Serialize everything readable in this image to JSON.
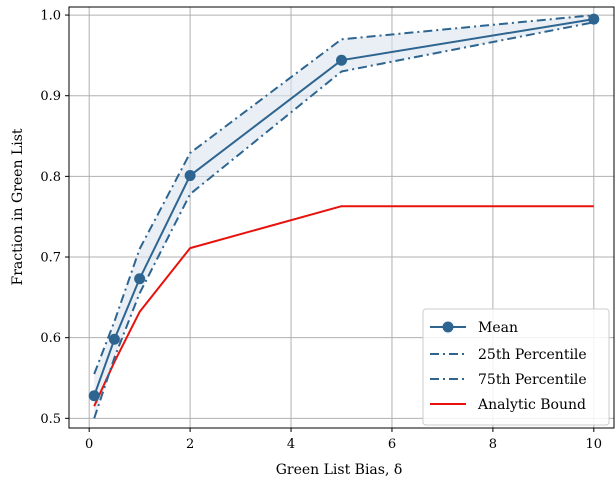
{
  "chart_data": {
    "type": "line",
    "title": "",
    "xlabel": "Green List Bias, δ",
    "ylabel": "Fraction in Green List",
    "xlim": [
      -0.4,
      10.4
    ],
    "ylim": [
      0.488,
      1.01
    ],
    "xticks": [
      0,
      2,
      4,
      6,
      8,
      10
    ],
    "xtick_labels": [
      "0",
      "2",
      "4",
      "6",
      "8",
      "10"
    ],
    "yticks": [
      0.5,
      0.6,
      0.7,
      0.8,
      0.9,
      1.0
    ],
    "ytick_labels": [
      "0.5",
      "0.6",
      "0.7",
      "0.8",
      "0.9",
      "1.0"
    ],
    "grid": true,
    "legend_position": "bottom-right",
    "x": [
      0.1,
      0.5,
      1,
      2,
      5,
      10
    ],
    "series": [
      {
        "name": "Mean",
        "values": [
          0.528,
          0.598,
          0.673,
          0.801,
          0.944,
          0.995
        ],
        "color": "#2e6590",
        "style": "solid",
        "marker": "circle"
      },
      {
        "name": "25th Percentile",
        "values": [
          0.5,
          0.575,
          0.655,
          0.778,
          0.93,
          0.991
        ],
        "color": "#2e6590",
        "style": "dashdot"
      },
      {
        "name": "75th Percentile",
        "values": [
          0.555,
          0.62,
          0.71,
          0.829,
          0.97,
          1.0
        ],
        "color": "#2e6590",
        "style": "dashdot"
      },
      {
        "name": "Analytic Bound",
        "values": [
          0.515,
          0.57,
          0.632,
          0.711,
          0.763,
          0.763
        ],
        "color": "#e8120c",
        "style": "solid"
      }
    ],
    "band": {
      "lower": "25th Percentile",
      "upper": "75th Percentile",
      "color": "#dbe5ef"
    }
  }
}
